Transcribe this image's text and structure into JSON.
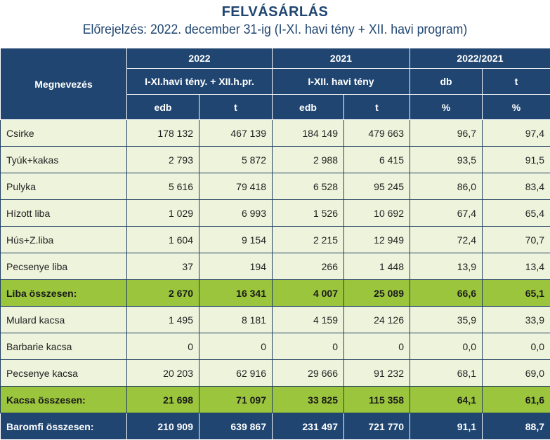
{
  "title": "FELVÁSÁRLÁS",
  "subtitle": "Előrejelzés: 2022. december 31-ig  (I-XI. havi tény + XII. havi program)",
  "header": {
    "name": "Megnevezés",
    "g2022": "2022",
    "g2021": "2021",
    "gratio": "2022/2021",
    "s2022": "I-XI.havi tény. + XII.h.pr.",
    "s2021": "I-XII. havi  tény",
    "sdb": "db",
    "st": "t",
    "u": [
      "edb",
      "t",
      "edb",
      "t",
      "%",
      "%"
    ]
  },
  "rows": [
    {
      "type": "normal",
      "cells": [
        "Csirke",
        "178 132",
        "467 139",
        "184 149",
        "479 663",
        "96,7",
        "97,4"
      ]
    },
    {
      "type": "normal",
      "cells": [
        "Tyúk+kakas",
        "2 793",
        "5 872",
        "2 988",
        "6 415",
        "93,5",
        "91,5"
      ]
    },
    {
      "type": "normal",
      "cells": [
        "Pulyka",
        "5 616",
        "79 418",
        "6 528",
        "95 245",
        "86,0",
        "83,4"
      ]
    },
    {
      "type": "normal",
      "cells": [
        "Hízott liba",
        "1 029",
        "6 993",
        "1 526",
        "10 692",
        "67,4",
        "65,4"
      ]
    },
    {
      "type": "normal",
      "cells": [
        "Hús+Z.liba",
        "1 604",
        "9 154",
        "2 215",
        "12 949",
        "72,4",
        "70,7"
      ]
    },
    {
      "type": "normal",
      "cells": [
        "Pecsenye liba",
        "37",
        "194",
        "266",
        "1 448",
        "13,9",
        "13,4"
      ]
    },
    {
      "type": "sub",
      "cells": [
        "Liba összesen:",
        "2 670",
        "16 341",
        "4 007",
        "25 089",
        "66,6",
        "65,1"
      ]
    },
    {
      "type": "normal",
      "cells": [
        "Mulard kacsa",
        "1 495",
        "8 181",
        "4 159",
        "24 126",
        "35,9",
        "33,9"
      ]
    },
    {
      "type": "normal",
      "cells": [
        "Barbarie kacsa",
        "0",
        "0",
        "0",
        "0",
        "0,0",
        "0,0"
      ]
    },
    {
      "type": "normal",
      "cells": [
        "Pecsenye kacsa",
        "20 203",
        "62 916",
        "29 666",
        "91 232",
        "68,1",
        "69,0"
      ]
    },
    {
      "type": "sub",
      "cells": [
        "Kacsa összesen:",
        "21 698",
        "71 097",
        "33 825",
        "115 358",
        "64,1",
        "61,6"
      ]
    },
    {
      "type": "total",
      "cells": [
        "Baromfi összesen:",
        "210 909",
        "639 867",
        "231 497",
        "721 770",
        "91,1",
        "88,7"
      ]
    }
  ]
}
